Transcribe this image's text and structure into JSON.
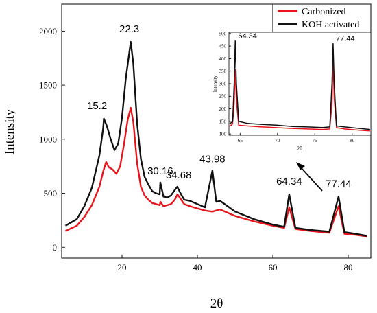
{
  "chart_data": [
    {
      "type": "line",
      "xlabel": "2θ",
      "ylabel": "Intensity",
      "xlim": [
        4,
        86
      ],
      "ylim": [
        -100,
        2250
      ],
      "x_ticks": [
        20,
        40,
        60,
        80
      ],
      "y_ticks": [
        0,
        500,
        1000,
        1500,
        2000
      ],
      "legend_position": "top-right",
      "grid": false,
      "series": [
        {
          "name": "Carbonized",
          "color": "#e8141b",
          "x": [
            5,
            8,
            10,
            12,
            14,
            15,
            15.8,
            16.5,
            17.5,
            18.5,
            19.5,
            20.5,
            21.5,
            22.3,
            23,
            24,
            25,
            26,
            27,
            28,
            29,
            30,
            30.2,
            31,
            32,
            33,
            34,
            34.7,
            35.5,
            36.5,
            38,
            40,
            42,
            43.98,
            45,
            46,
            48,
            50,
            55,
            60,
            63,
            64.34,
            66,
            70,
            75,
            77.44,
            79,
            82,
            85
          ],
          "y": [
            150,
            200,
            280,
            390,
            560,
            700,
            790,
            740,
            720,
            680,
            750,
            950,
            1180,
            1290,
            1160,
            780,
            560,
            480,
            440,
            410,
            400,
            390,
            420,
            380,
            390,
            400,
            440,
            490,
            450,
            400,
            380,
            360,
            340,
            330,
            340,
            350,
            320,
            290,
            240,
            200,
            180,
            370,
            170,
            150,
            135,
            380,
            125,
            115,
            100
          ]
        },
        {
          "name": "KOH activated",
          "color": "#111111",
          "x": [
            5,
            8,
            10,
            12,
            14,
            15,
            15.2,
            16,
            17,
            18,
            19,
            20,
            21,
            22.3,
            23,
            24,
            25,
            26,
            27,
            28,
            29,
            30,
            30.16,
            31,
            32,
            33,
            34,
            34.68,
            35.5,
            36.5,
            38,
            40,
            42,
            43.98,
            45,
            46,
            48,
            50,
            55,
            60,
            63,
            64.34,
            66,
            70,
            75,
            77.44,
            79,
            82,
            85
          ],
          "y": [
            200,
            260,
            380,
            550,
            850,
            1100,
            1190,
            1120,
            1000,
            900,
            960,
            1200,
            1560,
            1900,
            1700,
            1150,
            820,
            650,
            580,
            520,
            500,
            490,
            600,
            470,
            460,
            480,
            530,
            560,
            500,
            440,
            430,
            400,
            370,
            710,
            420,
            430,
            380,
            330,
            260,
            210,
            190,
            490,
            180,
            160,
            145,
            470,
            140,
            125,
            105
          ]
        }
      ],
      "annotations": [
        "15.2",
        "22.3",
        "30.16",
        "34.68",
        "43.98",
        "64.34",
        "77.44"
      ]
    },
    {
      "type": "line",
      "xlabel": "2θ",
      "ylabel": "Intensity",
      "xlim": [
        63.5,
        82.5
      ],
      "ylim": [
        95,
        505
      ],
      "x_ticks": [
        65,
        70,
        75,
        80
      ],
      "y_ticks": [
        100,
        150,
        200,
        250,
        300,
        350,
        400,
        450,
        500
      ],
      "series": [
        {
          "name": "Carbonized",
          "color": "#e8141b",
          "x": [
            63.6,
            64,
            64.2,
            64.34,
            64.5,
            64.8,
            66,
            68,
            70,
            72,
            74,
            76,
            77,
            77.3,
            77.44,
            77.6,
            77.9,
            79,
            81,
            82.4
          ],
          "y": [
            130,
            140,
            220,
            355,
            230,
            135,
            132,
            128,
            125,
            122,
            120,
            118,
            120,
            220,
            385,
            240,
            125,
            120,
            115,
            112
          ]
        },
        {
          "name": "KOH activated",
          "color": "#111111",
          "x": [
            63.6,
            64,
            64.2,
            64.34,
            64.5,
            64.8,
            66,
            68,
            70,
            72,
            74,
            76,
            77,
            77.3,
            77.44,
            77.6,
            77.9,
            79,
            81,
            82.4
          ],
          "y": [
            140,
            150,
            300,
            470,
            300,
            150,
            142,
            138,
            135,
            130,
            128,
            126,
            128,
            300,
            460,
            300,
            132,
            128,
            122,
            118
          ]
        }
      ],
      "annotations": [
        "64.34",
        "77.44"
      ]
    }
  ]
}
